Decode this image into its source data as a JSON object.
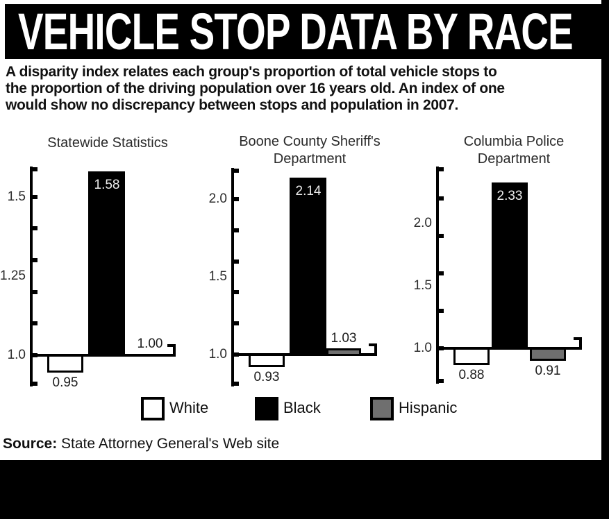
{
  "header": {
    "title": "VEHICLE STOP DATA BY RACE"
  },
  "description": {
    "lines": [
      "A disparity index relates each group's proportion of total vehicle stops to",
      "the proportion of the driving population over 16 years old. An index of one",
      "would show no discrepancy between stops and population in 2007."
    ]
  },
  "chart_data": {
    "type": "bar",
    "title": "VEHICLE STOP DATA BY RACE",
    "subtitle": "A disparity index relates each group's proportion of total vehicle stops to the proportion of the driving population over 16 years old. An index of one would show no discrepancy between stops and population in 2007.",
    "series_names": [
      "White",
      "Black",
      "Hispanic"
    ],
    "baseline_value": 1.0,
    "grid": false,
    "legend_position": "bottom",
    "charts": [
      {
        "title_lines": [
          "Statewide Statistics"
        ],
        "axis": {
          "ylim": [
            0.9,
            1.6
          ],
          "tick_values": [
            1.0,
            1.1,
            1.2,
            1.3,
            1.4,
            1.5
          ],
          "labels": [
            {
              "value": 1.5,
              "text": "1.5"
            },
            {
              "value": 1.25,
              "text": "1.25"
            },
            {
              "value": 1.0,
              "text": "1.0"
            }
          ]
        },
        "values": [
          {
            "name": "White",
            "value": 0.95,
            "label": "0.95"
          },
          {
            "name": "Black",
            "value": 1.58,
            "label": "1.58"
          },
          {
            "name": "Hispanic",
            "value": 1.0,
            "label": "1.00"
          }
        ]
      },
      {
        "title_lines": [
          "Boone County Sheriff's",
          "Department"
        ],
        "axis": {
          "ylim": [
            0.8,
            2.2
          ],
          "tick_values": [
            1.0,
            1.2,
            1.4,
            1.6,
            1.8,
            2.0
          ],
          "labels": [
            {
              "value": 2.0,
              "text": "2.0"
            },
            {
              "value": 1.5,
              "text": "1.5"
            },
            {
              "value": 1.0,
              "text": "1.0"
            }
          ]
        },
        "values": [
          {
            "name": "White",
            "value": 0.93,
            "label": "0.93"
          },
          {
            "name": "Black",
            "value": 2.14,
            "label": "2.14"
          },
          {
            "name": "Hispanic",
            "value": 1.03,
            "label": "1.03"
          }
        ]
      },
      {
        "title_lines": [
          "Columbia Police",
          "Department"
        ],
        "axis": {
          "ylim": [
            0.72,
            2.46
          ],
          "tick_values": [
            1.0,
            1.3,
            1.6,
            1.9,
            2.2
          ],
          "labels": [
            {
              "value": 2.0,
              "text": "2.0"
            },
            {
              "value": 1.5,
              "text": "1.5"
            },
            {
              "value": 1.0,
              "text": "1.0"
            }
          ]
        },
        "values": [
          {
            "name": "White",
            "value": 0.88,
            "label": "0.88"
          },
          {
            "name": "Black",
            "value": 2.33,
            "label": "2.33"
          },
          {
            "name": "Hispanic",
            "value": 0.91,
            "label": "0.91"
          }
        ]
      }
    ]
  },
  "legend": {
    "items": [
      {
        "label": "White",
        "color": "#ffffff"
      },
      {
        "label": "Black",
        "color": "#000000"
      },
      {
        "label": "Hispanic",
        "color": "#6f6f6f"
      }
    ]
  },
  "source": {
    "prefix": "Source:",
    "text": " State Attorney General's Web site"
  },
  "colors": {
    "header_bg": "#000000",
    "header_text": "#ffffff",
    "ink": "#111111",
    "bar_white": "#ffffff",
    "bar_black": "#000000",
    "bar_hispanic": "#6f6f6f"
  }
}
